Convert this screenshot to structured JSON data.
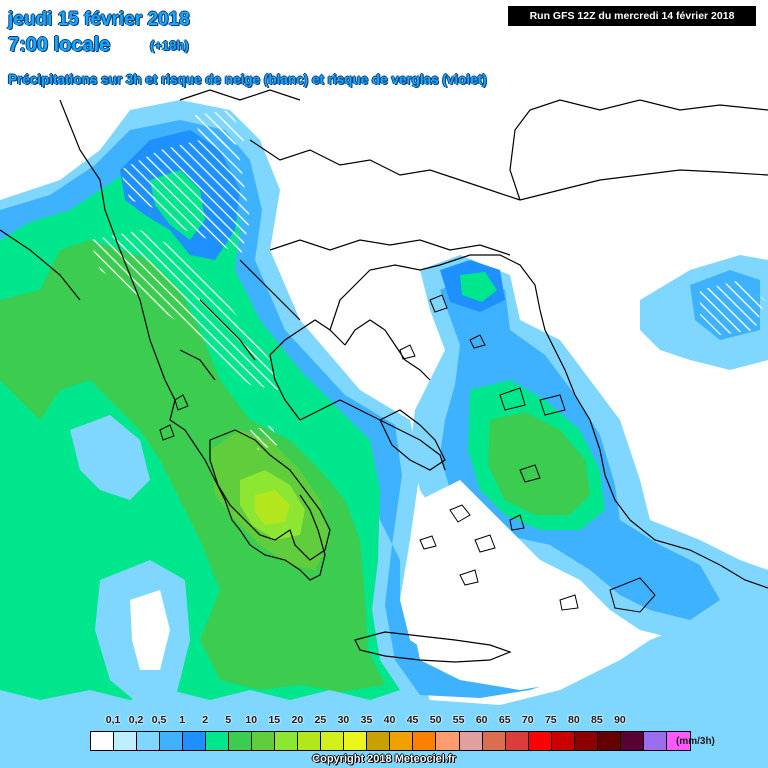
{
  "header": {
    "date_line": "jeudi 15 février 2018",
    "time_line": "7:00 locale",
    "offset": "(+18h)",
    "subtitle": "Précipitations sur 3h et risque de neige (blanc) et risque de verglas (violet)",
    "run_info": "Run GFS 12Z du mercredi 14 février 2018"
  },
  "legend": {
    "unit": "(mm/3h)",
    "ticks": [
      "0,1",
      "0,2",
      "0,5",
      "1",
      "2",
      "5",
      "10",
      "15",
      "20",
      "25",
      "30",
      "35",
      "40",
      "45",
      "50",
      "55",
      "60",
      "65",
      "70",
      "75",
      "80",
      "85",
      "90"
    ],
    "colors": [
      "#ffffff",
      "#bfefff",
      "#7fd7ff",
      "#3fb2ff",
      "#1e90ff",
      "#00e68c",
      "#3ccc50",
      "#5fcd3c",
      "#8ce632",
      "#b4e61e",
      "#d2f01e",
      "#ebf51e",
      "#c8a000",
      "#f0a000",
      "#ff7f00",
      "#ff9c6e",
      "#e0a0a0",
      "#dc6e50",
      "#dc3c3c",
      "#ff0000",
      "#c80000",
      "#8c0000",
      "#640000",
      "#5a0032",
      "#9b6ef0",
      "#ff5aff"
    ]
  },
  "map": {
    "region": "Grèce / mer Égée",
    "snow_hatch_color": "#ffffff"
  },
  "footer": {
    "copyright": "Copyright 2018 Meteociel.fr"
  }
}
